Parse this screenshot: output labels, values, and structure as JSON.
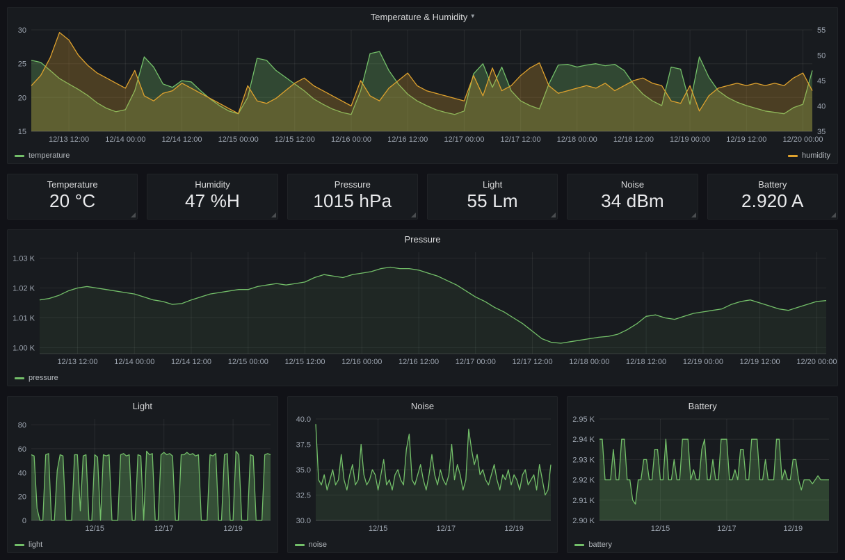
{
  "icons": {
    "caret_down": "▾"
  },
  "stats": {
    "items": [
      {
        "title": "Temperature",
        "value": "20 °C"
      },
      {
        "title": "Humidity",
        "value": "47 %H"
      },
      {
        "title": "Pressure",
        "value": "1015 hPa"
      },
      {
        "title": "Light",
        "value": "55 Lm"
      },
      {
        "title": "Noise",
        "value": "34 dBm"
      },
      {
        "title": "Battery",
        "value": "2.920 A"
      }
    ]
  },
  "chart_data": [
    {
      "type": "line",
      "title": "Temperature & Humidity",
      "xlim": [
        0,
        166
      ],
      "xticks": [
        {
          "v": 8,
          "label": "12/13 12:00"
        },
        {
          "v": 20,
          "label": "12/14 00:00"
        },
        {
          "v": 32,
          "label": "12/14 12:00"
        },
        {
          "v": 44,
          "label": "12/15 00:00"
        },
        {
          "v": 56,
          "label": "12/15 12:00"
        },
        {
          "v": 68,
          "label": "12/16 00:00"
        },
        {
          "v": 80,
          "label": "12/16 12:00"
        },
        {
          "v": 92,
          "label": "12/17 00:00"
        },
        {
          "v": 104,
          "label": "12/17 12:00"
        },
        {
          "v": 116,
          "label": "12/18 00:00"
        },
        {
          "v": 128,
          "label": "12/18 12:00"
        },
        {
          "v": 140,
          "label": "12/19 00:00"
        },
        {
          "v": 152,
          "label": "12/19 12:00"
        },
        {
          "v": 164,
          "label": "12/20 00:00"
        }
      ],
      "ylim": [
        15,
        30
      ],
      "yticks": [
        {
          "v": 15,
          "label": "15"
        },
        {
          "v": 20,
          "label": "20"
        },
        {
          "v": 25,
          "label": "25"
        },
        {
          "v": 30,
          "label": "30"
        }
      ],
      "y2lim": [
        35,
        55
      ],
      "y2ticks": [
        {
          "v": 35,
          "label": "35"
        },
        {
          "v": 40,
          "label": "40"
        },
        {
          "v": 45,
          "label": "45"
        },
        {
          "v": 50,
          "label": "50"
        },
        {
          "v": 55,
          "label": "55"
        }
      ],
      "margins": {
        "l": 34,
        "r": 36,
        "t": 6,
        "b": 24
      },
      "legend_position": "bottom",
      "series": [
        {
          "name": "temperature",
          "color": "#73bf69",
          "fill": 0.28,
          "axis": "left",
          "values": [
            25.5,
            25.2,
            24.0,
            22.8,
            22.0,
            21.2,
            20.3,
            19.2,
            18.4,
            17.9,
            18.2,
            21.0,
            26.0,
            24.5,
            22.0,
            21.5,
            22.5,
            22.3,
            21.0,
            19.8,
            18.8,
            18.0,
            17.6,
            20.0,
            25.8,
            25.5,
            24.0,
            23.0,
            22.0,
            21.0,
            19.8,
            19.0,
            18.3,
            17.8,
            17.5,
            21.0,
            26.5,
            26.8,
            24.0,
            22.0,
            20.5,
            19.5,
            18.8,
            18.2,
            17.8,
            17.5,
            18.0,
            23.5,
            25.0,
            21.5,
            24.5,
            21.0,
            19.5,
            18.8,
            18.3,
            22.0,
            24.8,
            24.9,
            24.5,
            24.8,
            25.0,
            24.7,
            24.9,
            24.0,
            22.0,
            20.5,
            19.5,
            18.8,
            24.5,
            24.2,
            19.0,
            26.0,
            23.0,
            21.0,
            20.0,
            19.3,
            18.8,
            18.4,
            18.0,
            17.8,
            17.6,
            18.5,
            19.0,
            24.0
          ]
        },
        {
          "name": "humidity",
          "color": "#dfa22e",
          "fill": 0.26,
          "axis": "right",
          "values": [
            44.0,
            46.0,
            49.5,
            54.5,
            53.0,
            50.0,
            48.0,
            46.5,
            45.5,
            44.5,
            43.5,
            47.0,
            42.0,
            41.0,
            42.5,
            43.0,
            44.5,
            43.5,
            42.5,
            41.5,
            40.5,
            39.5,
            38.5,
            44.0,
            41.0,
            40.5,
            41.5,
            43.0,
            44.5,
            45.5,
            44.0,
            43.0,
            42.0,
            41.0,
            40.0,
            45.0,
            42.0,
            41.0,
            43.5,
            45.0,
            46.5,
            44.0,
            43.0,
            42.5,
            42.0,
            41.5,
            41.0,
            46.0,
            42.0,
            47.5,
            43.0,
            44.0,
            46.0,
            47.5,
            48.5,
            44.0,
            42.5,
            43.0,
            43.5,
            44.0,
            43.5,
            44.5,
            43.0,
            44.0,
            45.0,
            45.5,
            44.5,
            44.0,
            41.0,
            40.5,
            44.0,
            39.0,
            42.0,
            43.5,
            44.0,
            44.5,
            44.0,
            44.5,
            44.0,
            44.5,
            44.0,
            45.5,
            46.5,
            43.0
          ]
        }
      ]
    },
    {
      "type": "line",
      "title": "Pressure",
      "xlim": [
        0,
        166
      ],
      "xticks": [
        {
          "v": 8,
          "label": "12/13 12:00"
        },
        {
          "v": 20,
          "label": "12/14 00:00"
        },
        {
          "v": 32,
          "label": "12/14 12:00"
        },
        {
          "v": 44,
          "label": "12/15 00:00"
        },
        {
          "v": 56,
          "label": "12/15 12:00"
        },
        {
          "v": 68,
          "label": "12/16 00:00"
        },
        {
          "v": 80,
          "label": "12/16 12:00"
        },
        {
          "v": 92,
          "label": "12/17 00:00"
        },
        {
          "v": 104,
          "label": "12/17 12:00"
        },
        {
          "v": 116,
          "label": "12/18 00:00"
        },
        {
          "v": 128,
          "label": "12/18 12:00"
        },
        {
          "v": 140,
          "label": "12/19 00:00"
        },
        {
          "v": 152,
          "label": "12/19 12:00"
        },
        {
          "v": 164,
          "label": "12/20 00:00"
        }
      ],
      "ylim": [
        998,
        1032
      ],
      "yticks": [
        {
          "v": 1000,
          "label": "1.00 K"
        },
        {
          "v": 1010,
          "label": "1.01 K"
        },
        {
          "v": 1020,
          "label": "1.02 K"
        },
        {
          "v": 1030,
          "label": "1.03 K"
        }
      ],
      "margins": {
        "l": 46,
        "r": 16,
        "t": 6,
        "b": 24
      },
      "legend_position": "bottom-left",
      "series": [
        {
          "name": "pressure",
          "color": "#73bf69",
          "fill": 0.08,
          "axis": "left",
          "values": [
            1016.0,
            1016.5,
            1017.5,
            1019.0,
            1020.0,
            1020.5,
            1020.0,
            1019.5,
            1019.0,
            1018.5,
            1018.0,
            1017.0,
            1016.0,
            1015.5,
            1014.5,
            1014.8,
            1016.0,
            1017.0,
            1018.0,
            1018.5,
            1019.0,
            1019.5,
            1019.5,
            1020.5,
            1021.0,
            1021.5,
            1021.0,
            1021.5,
            1022.0,
            1023.5,
            1024.5,
            1024.0,
            1023.5,
            1024.5,
            1025.0,
            1025.5,
            1026.5,
            1027.0,
            1026.5,
            1026.5,
            1026.0,
            1025.0,
            1024.0,
            1022.5,
            1021.0,
            1019.0,
            1017.0,
            1015.5,
            1013.5,
            1012.0,
            1010.0,
            1008.0,
            1005.5,
            1003.0,
            1001.8,
            1001.5,
            1002.0,
            1002.5,
            1003.0,
            1003.5,
            1003.8,
            1004.5,
            1006.0,
            1008.0,
            1010.5,
            1011.0,
            1010.0,
            1009.5,
            1010.5,
            1011.5,
            1012.0,
            1012.5,
            1013.0,
            1014.5,
            1015.5,
            1016.0,
            1015.0,
            1014.0,
            1013.0,
            1012.5,
            1013.5,
            1014.5,
            1015.5,
            1015.8
          ]
        }
      ]
    },
    {
      "type": "line",
      "title": "Light",
      "xlim": [
        0,
        166
      ],
      "xticks": [
        {
          "v": 44,
          "label": "12/15"
        },
        {
          "v": 92,
          "label": "12/17"
        },
        {
          "v": 140,
          "label": "12/19"
        }
      ],
      "ylim": [
        0,
        85
      ],
      "yticks": [
        {
          "v": 0,
          "label": "0"
        },
        {
          "v": 20,
          "label": "20"
        },
        {
          "v": 40,
          "label": "40"
        },
        {
          "v": 60,
          "label": "60"
        },
        {
          "v": 80,
          "label": "80"
        }
      ],
      "margins": {
        "l": 34,
        "r": 10,
        "t": 6,
        "b": 24
      },
      "legend_position": "bottom-left",
      "series": [
        {
          "name": "light",
          "color": "#73bf69",
          "fill": 0.32,
          "axis": "left",
          "values": [
            55,
            54,
            10,
            0,
            0,
            55,
            56,
            0,
            0,
            42,
            55,
            54,
            0,
            0,
            0,
            55,
            55,
            8,
            54,
            55,
            0,
            0,
            55,
            53,
            0,
            55,
            54,
            55,
            0,
            0,
            0,
            55,
            56,
            54,
            55,
            0,
            0,
            55,
            54,
            0,
            58,
            55,
            56,
            0,
            0,
            55,
            57,
            55,
            56,
            54,
            0,
            0,
            55,
            55,
            57,
            55,
            56,
            54,
            55,
            0,
            0,
            0,
            55,
            54,
            56,
            0,
            0,
            55,
            56,
            0,
            0,
            58,
            55,
            0,
            0,
            0,
            55,
            54,
            0,
            0,
            0,
            55,
            56,
            55
          ]
        }
      ]
    },
    {
      "type": "line",
      "title": "Noise",
      "xlim": [
        0,
        166
      ],
      "xticks": [
        {
          "v": 44,
          "label": "12/15"
        },
        {
          "v": 92,
          "label": "12/17"
        },
        {
          "v": 140,
          "label": "12/19"
        }
      ],
      "ylim": [
        30,
        40
      ],
      "yticks": [
        {
          "v": 30,
          "label": "30.0"
        },
        {
          "v": 32.5,
          "label": "32.5"
        },
        {
          "v": 35,
          "label": "35.0"
        },
        {
          "v": 37.5,
          "label": "37.5"
        },
        {
          "v": 40,
          "label": "40.0"
        }
      ],
      "margins": {
        "l": 40,
        "r": 10,
        "t": 6,
        "b": 24
      },
      "legend_position": "bottom-left",
      "series": [
        {
          "name": "noise",
          "color": "#73bf69",
          "fill": 0.12,
          "axis": "left",
          "values": [
            39.5,
            34.0,
            33.5,
            34.5,
            33.0,
            34.0,
            35.0,
            33.5,
            34.0,
            36.5,
            34.0,
            33.0,
            34.5,
            35.5,
            33.5,
            34.0,
            37.5,
            34.5,
            33.5,
            34.0,
            35.0,
            34.5,
            33.0,
            34.5,
            36.0,
            33.5,
            34.0,
            33.0,
            34.5,
            35.0,
            34.0,
            33.5,
            37.0,
            38.5,
            34.0,
            33.5,
            34.5,
            35.5,
            34.0,
            33.0,
            34.5,
            36.5,
            34.5,
            33.5,
            35.0,
            34.0,
            33.5,
            34.5,
            37.5,
            34.0,
            35.5,
            34.5,
            33.0,
            34.0,
            39.0,
            37.0,
            35.5,
            36.5,
            34.5,
            35.0,
            34.0,
            33.5,
            34.5,
            35.5,
            34.0,
            33.0,
            34.5,
            34.0,
            35.0,
            33.5,
            34.5,
            34.0,
            33.0,
            34.5,
            35.0,
            33.5,
            34.0,
            34.5,
            33.0,
            35.5,
            34.0,
            32.5,
            33.0,
            35.5
          ]
        }
      ]
    },
    {
      "type": "line",
      "title": "Battery",
      "xlim": [
        0,
        166
      ],
      "xticks": [
        {
          "v": 44,
          "label": "12/15"
        },
        {
          "v": 92,
          "label": "12/17"
        },
        {
          "v": 140,
          "label": "12/19"
        }
      ],
      "ylim": [
        2900,
        2950
      ],
      "yticks": [
        {
          "v": 2900,
          "label": "2.90 K"
        },
        {
          "v": 2910,
          "label": "2.91 K"
        },
        {
          "v": 2920,
          "label": "2.92 K"
        },
        {
          "v": 2930,
          "label": "2.93 K"
        },
        {
          "v": 2940,
          "label": "2.94 K"
        },
        {
          "v": 2950,
          "label": "2.95 K"
        }
      ],
      "margins": {
        "l": 46,
        "r": 12,
        "t": 6,
        "b": 24
      },
      "legend_position": "bottom-left",
      "series": [
        {
          "name": "battery",
          "color": "#73bf69",
          "fill": 0.25,
          "axis": "left",
          "values": [
            2940,
            2940,
            2920,
            2920,
            2920,
            2935,
            2920,
            2920,
            2940,
            2940,
            2920,
            2920,
            2910,
            2908,
            2920,
            2920,
            2930,
            2930,
            2920,
            2920,
            2935,
            2935,
            2920,
            2920,
            2940,
            2920,
            2920,
            2930,
            2920,
            2920,
            2940,
            2940,
            2940,
            2920,
            2925,
            2920,
            2920,
            2935,
            2940,
            2920,
            2920,
            2930,
            2920,
            2920,
            2940,
            2940,
            2940,
            2920,
            2920,
            2925,
            2920,
            2935,
            2935,
            2920,
            2920,
            2940,
            2940,
            2940,
            2920,
            2920,
            2930,
            2920,
            2920,
            2920,
            2940,
            2940,
            2920,
            2925,
            2920,
            2920,
            2930,
            2930,
            2920,
            2915,
            2920,
            2920,
            2920,
            2918,
            2920,
            2922,
            2920,
            2920,
            2920,
            2920
          ]
        }
      ]
    }
  ]
}
